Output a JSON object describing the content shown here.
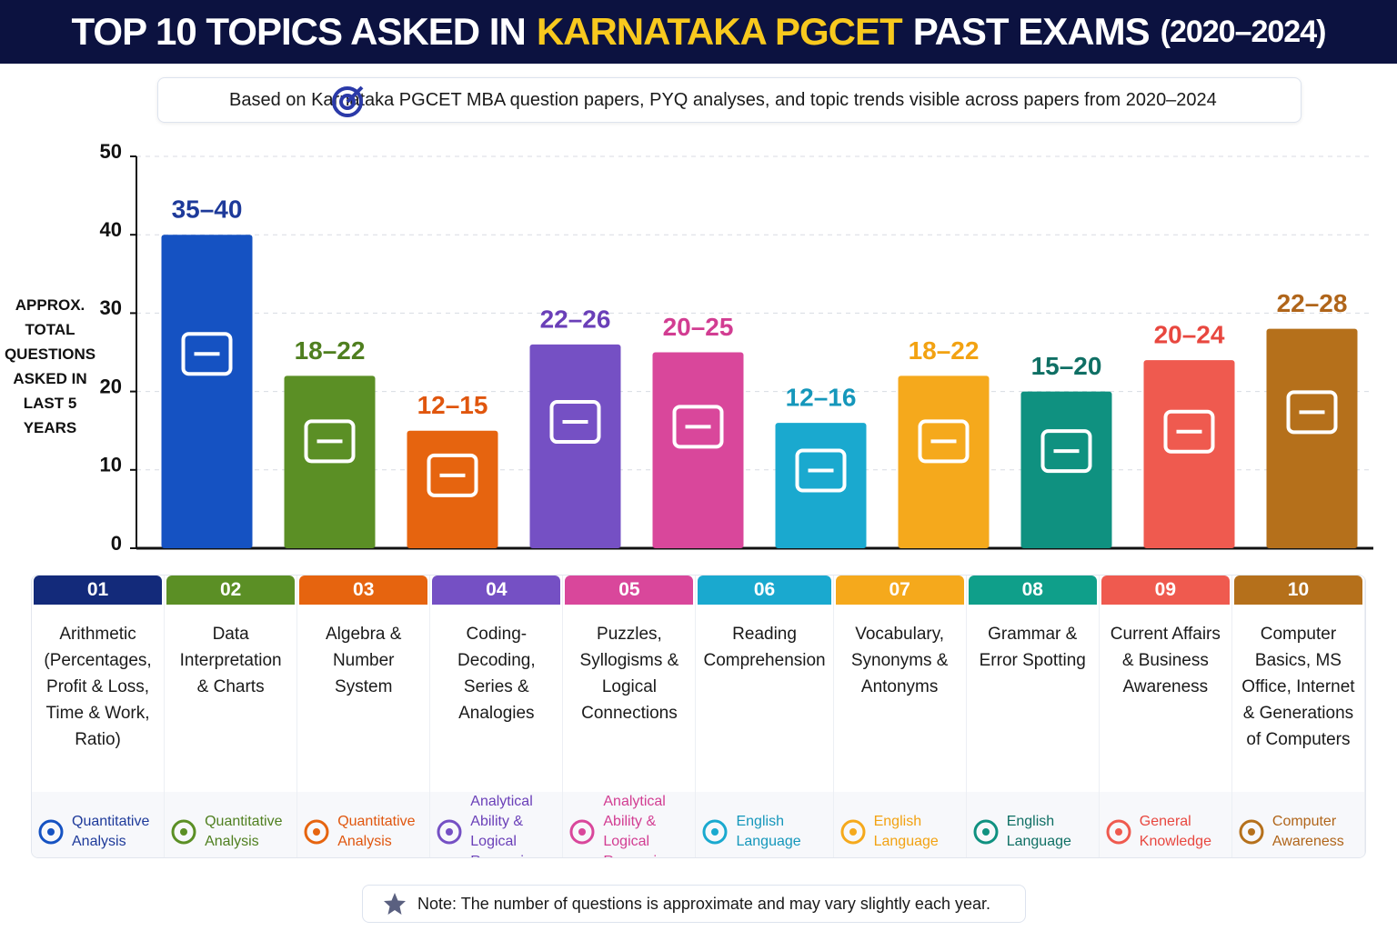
{
  "chart_data": {
    "type": "bar",
    "title_parts": [
      "TOP 10 TOPICS ASKED IN",
      "KARNATAKA PGCET",
      "PAST EXAMS",
      "(2020–2024)"
    ],
    "subtitle": "Based on Karnataka PGCET MBA question papers, PYQ analyses, and topic trends visible across papers from 2020–2024",
    "y_label": "APPROX. TOTAL QUESTIONS ASKED IN LAST 5 YEARS",
    "ylim": [
      0,
      50
    ],
    "yticks": [
      0,
      10,
      20,
      30,
      40,
      50
    ],
    "grid": true,
    "categories": [
      "01",
      "02",
      "03",
      "04",
      "05",
      "06",
      "07",
      "08",
      "09",
      "10"
    ],
    "values": [
      40,
      22,
      15,
      26,
      25,
      16,
      22,
      20,
      24,
      28
    ],
    "value_labels": [
      "35–40",
      "18–22",
      "12–15",
      "22–26",
      "20–25",
      "12–16",
      "18–22",
      "15–20",
      "20–24",
      "22–28"
    ],
    "colors": [
      "#1552c2",
      "#5b8f25",
      "#e6640f",
      "#7550c4",
      "#d9479b",
      "#1aa9cf",
      "#f5a91c",
      "#0f9180",
      "#ef5a4f",
      "#b5701b"
    ],
    "label_colors": [
      "#1e3a9a",
      "#4f7f1f",
      "#e0560e",
      "#6a3fb8",
      "#d23d92",
      "#1597bb",
      "#f2a212",
      "#0f6f64",
      "#e8473f",
      "#b0651a"
    ],
    "topics": [
      "Arithmetic (Percentages, Profit & Loss, Time & Work, Ratio)",
      "Data Interpretation & Charts",
      "Algebra & Number System",
      "Coding-Decoding, Series & Analogies",
      "Puzzles, Syllogisms & Logical Connections",
      "Reading Comprehension",
      "Vocabulary, Synonyms & Antonyms",
      "Grammar & Error Spotting",
      "Current Affairs & Business Awareness",
      "Computer Basics, MS Office, Internet & Generations of Computers"
    ],
    "areas": [
      "Quantitative Analysis",
      "Quantitative Analysis",
      "Quantitative Analysis",
      "Analytical Ability & Logical Reasoning",
      "Analytical Ability & Logical Reasoning",
      "English Language",
      "English Language",
      "English Language",
      "General Knowledge",
      "Computer Awareness"
    ],
    "header_colors": [
      "#132a7a",
      "#5b8f25",
      "#e6640f",
      "#7550c4",
      "#d9479b",
      "#1aa9cf",
      "#f5a91c",
      "#0f9f8a",
      "#ef5a4f",
      "#b5701b"
    ],
    "note": "Note: The number of questions is approximate and may vary slightly each year."
  }
}
